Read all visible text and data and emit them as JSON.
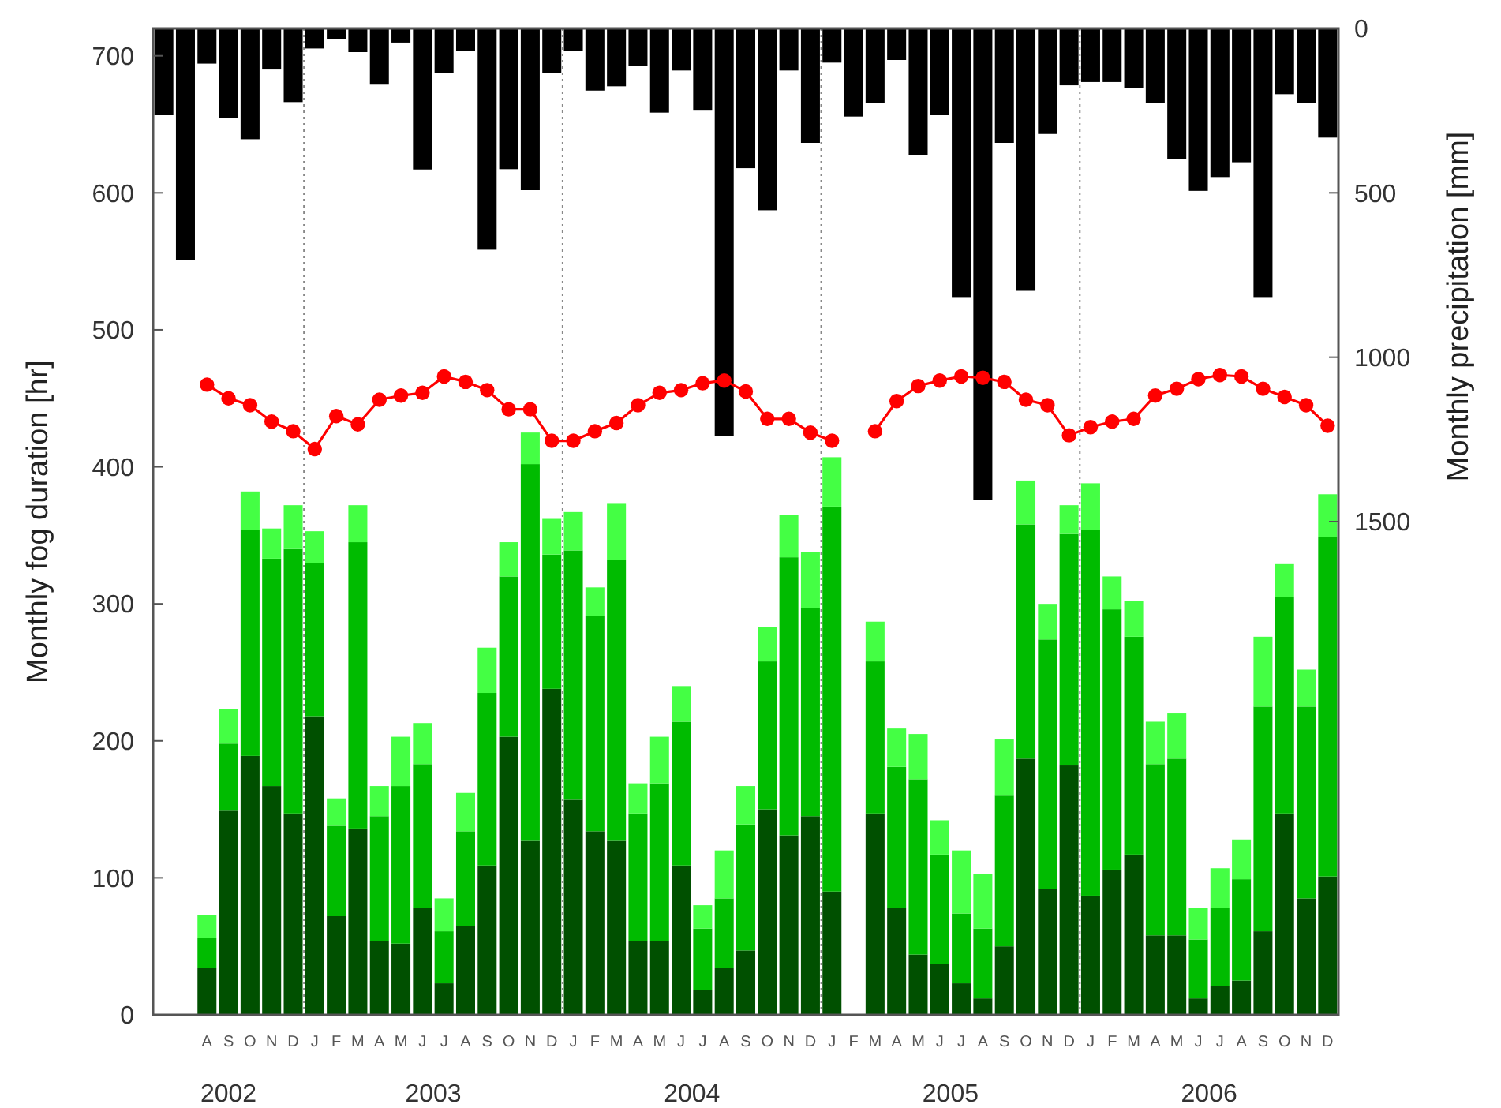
{
  "chart_data": {
    "type": "bar",
    "stacked": true,
    "ylabel": "Monthly fog duration [hr]",
    "y2label": "Monthly precipitation [mm]",
    "categories": [
      null,
      null,
      "A",
      "S",
      "O",
      "N",
      "D",
      "J",
      "F",
      "M",
      "A",
      "M",
      "J",
      "J",
      "A",
      "S",
      "O",
      "N",
      "D",
      "J",
      "F",
      "M",
      "A",
      "M",
      "J",
      "J",
      "A",
      "S",
      "O",
      "N",
      "D",
      "J",
      "F",
      "M",
      "A",
      "M",
      "J",
      "J",
      "A",
      "S",
      "O",
      "N",
      "D",
      "J",
      "F",
      "M",
      "A",
      "M",
      "J",
      "J",
      "A",
      "S",
      "O",
      "N",
      "D"
    ],
    "ylim": [
      0,
      720
    ],
    "yticks": [
      0,
      100,
      200,
      300,
      400,
      500,
      600,
      700
    ],
    "y2lim": [
      3000,
      0
    ],
    "y2ticks": [
      0,
      500,
      1000,
      1500
    ],
    "annotations": [
      "2002",
      "2003",
      "2004",
      "2005",
      "2006"
    ],
    "series": [
      {
        "color": "#005000",
        "values": [
          null,
          null,
          34,
          149,
          189,
          167,
          147,
          218,
          72,
          136,
          54,
          52,
          78,
          23,
          65,
          109,
          203,
          127,
          238,
          157,
          134,
          127,
          54,
          54,
          109,
          18,
          34,
          47,
          150,
          131,
          145,
          90,
          null,
          147,
          78,
          44,
          37,
          23,
          12,
          50,
          187,
          92,
          182,
          87,
          106,
          117,
          58,
          58,
          12,
          21,
          25,
          61,
          147,
          85,
          101
        ]
      },
      {
        "color": "#00bb00",
        "values": [
          null,
          null,
          22,
          49,
          165,
          166,
          193,
          112,
          66,
          209,
          91,
          115,
          105,
          38,
          69,
          126,
          117,
          275,
          98,
          182,
          157,
          205,
          93,
          115,
          105,
          45,
          51,
          92,
          108,
          203,
          152,
          281,
          null,
          111,
          103,
          128,
          80,
          51,
          51,
          110,
          171,
          182,
          169,
          267,
          190,
          159,
          125,
          129,
          43,
          57,
          74,
          164,
          158,
          140,
          248
        ]
      },
      {
        "color": "#44ff44",
        "values": [
          null,
          null,
          17,
          25,
          28,
          22,
          32,
          23,
          20,
          27,
          22,
          36,
          30,
          24,
          28,
          33,
          25,
          23,
          26,
          28,
          21,
          41,
          22,
          34,
          26,
          17,
          35,
          28,
          25,
          31,
          41,
          36,
          null,
          29,
          28,
          33,
          25,
          46,
          40,
          41,
          32,
          26,
          21,
          34,
          24,
          26,
          31,
          33,
          23,
          29,
          29,
          51,
          24,
          27,
          31
        ]
      },
      {
        "type": "bar",
        "axis": "y2",
        "color": "#000000",
        "values": [
          264,
          705,
          107,
          272,
          337,
          125,
          224,
          61,
          32,
          72,
          171,
          43,
          429,
          136,
          69,
          673,
          428,
          492,
          136,
          69,
          189,
          176,
          115,
          256,
          128,
          250,
          1239,
          425,
          553,
          128,
          348,
          104,
          268,
          228,
          96,
          385,
          264,
          817,
          1434,
          348,
          798,
          321,
          173,
          163,
          163,
          181,
          228,
          396,
          494,
          452,
          407,
          817,
          200,
          228,
          332
        ]
      },
      {
        "type": "line",
        "color": "#ff0000",
        "marker": "circle",
        "line_style": "solid",
        "values": [
          null,
          null,
          460,
          450,
          445,
          433,
          426,
          413,
          437,
          431,
          449,
          452,
          454,
          466,
          462,
          456,
          442,
          442,
          419,
          419,
          426,
          432,
          445,
          454,
          456,
          461,
          463,
          455,
          435,
          435,
          425,
          419,
          null,
          426,
          448,
          459,
          463,
          466,
          465,
          462,
          449,
          445,
          423,
          429,
          433,
          435,
          452,
          457,
          464,
          467,
          466,
          457,
          451,
          445,
          430
        ]
      }
    ]
  }
}
